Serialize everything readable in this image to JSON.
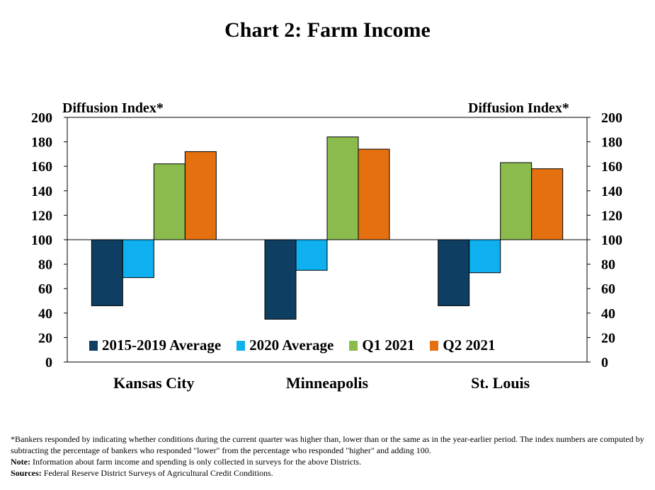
{
  "chart_data": {
    "type": "bar",
    "title": "Chart 2: Farm Income",
    "ylabel_left": "Diffusion Index*",
    "ylabel_right": "Diffusion Index*",
    "ylim": [
      0,
      200
    ],
    "yticks": [
      0,
      20,
      40,
      60,
      80,
      100,
      120,
      140,
      160,
      180,
      200
    ],
    "baseline": 100,
    "categories": [
      "Kansas City",
      "Minneapolis",
      "St. Louis"
    ],
    "series": [
      {
        "name": "2015-2019 Average",
        "color": "#0e3e62",
        "values": [
          46,
          35,
          46
        ]
      },
      {
        "name": "2020 Average",
        "color": "#0eb0f0",
        "values": [
          69,
          75,
          73
        ]
      },
      {
        "name": "Q1 2021",
        "color": "#8cbb4d",
        "values": [
          162,
          184,
          163
        ]
      },
      {
        "name": "Q2 2021",
        "color": "#e4700f",
        "values": [
          172,
          174,
          158
        ]
      }
    ],
    "legend_position": "bottom-inside"
  },
  "notes": {
    "footnote": "*Bankers responded by indicating  whether conditions  during  the current quarter was higher than, lower than or the same as in the year-earlier period. The index numbers are computed by subtracting the percentage of bankers who responded \"lower\"  from the percentage who responded \"higher\"  and adding  100.",
    "note_label": "Note:",
    "note_text": " Information about farm income and spending is only collected in surveys for the above Districts.",
    "sources_label": "Sources:",
    "sources_text": " Federal Reserve District Surveys of Agricultural Credit Conditions."
  }
}
